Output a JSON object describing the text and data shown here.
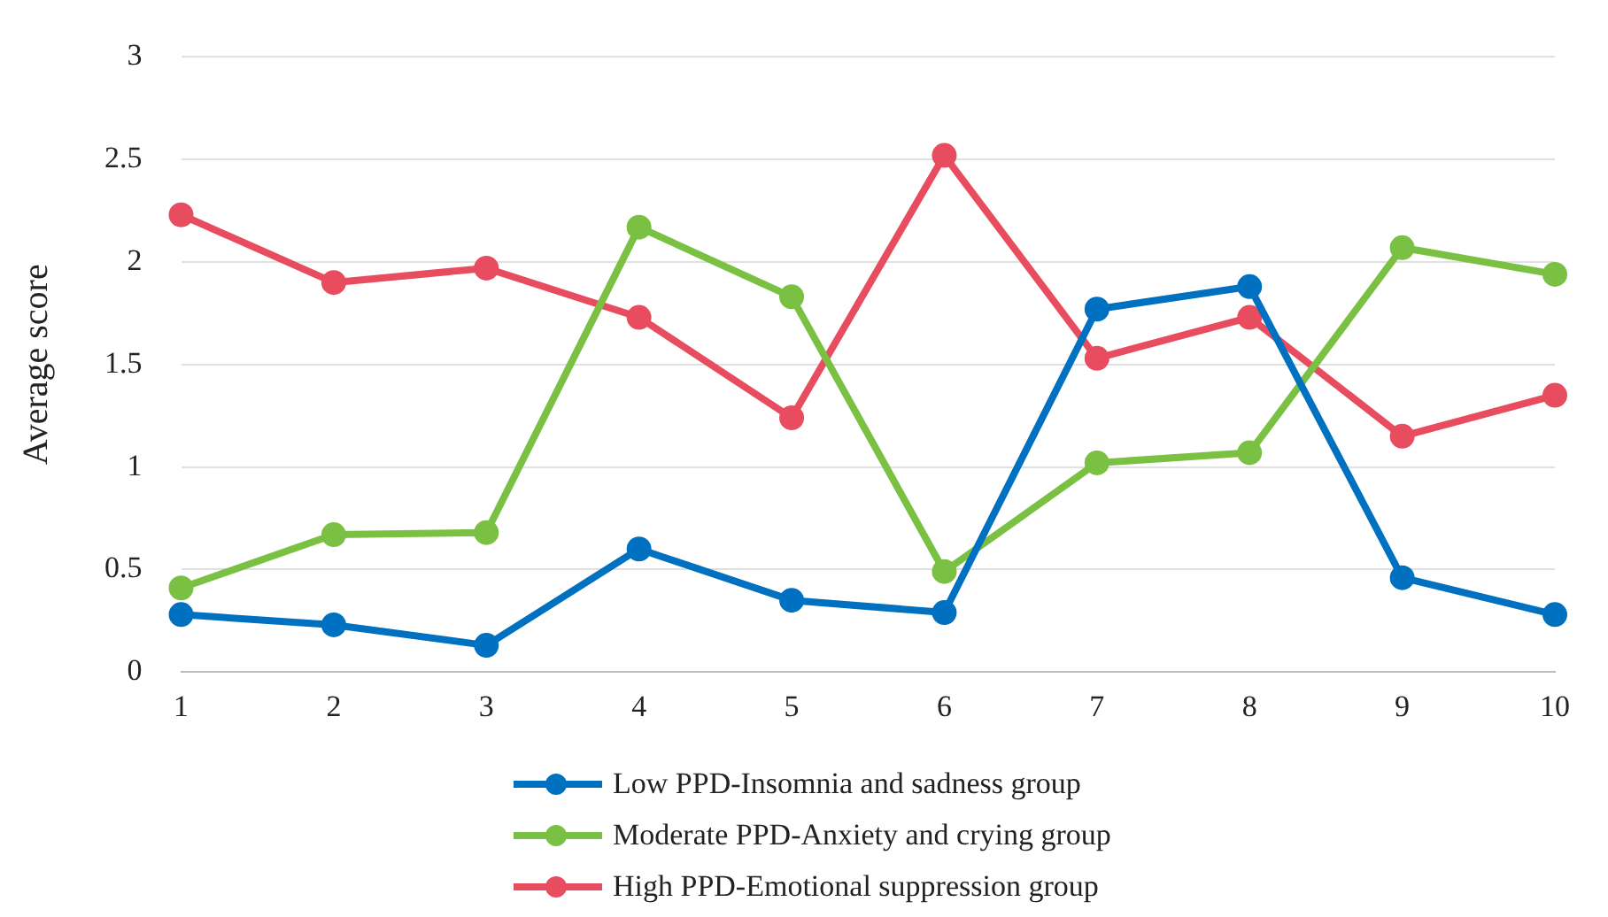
{
  "chart_data": {
    "type": "line",
    "ylabel": "Average score",
    "categories": [
      "1",
      "2",
      "3",
      "4",
      "5",
      "6",
      "7",
      "8",
      "9",
      "10"
    ],
    "series": [
      {
        "name": "Low PPD-Insomnia and sadness group",
        "color": "#0070c0",
        "values": [
          0.28,
          0.23,
          0.13,
          0.6,
          0.35,
          0.29,
          1.77,
          1.88,
          0.46,
          0.28
        ]
      },
      {
        "name": "Moderate PPD-Anxiety and crying group",
        "color": "#7ac143",
        "values": [
          0.41,
          0.67,
          0.68,
          2.17,
          1.83,
          0.49,
          1.02,
          1.07,
          2.07,
          1.94
        ]
      },
      {
        "name": "High PPD-Emotional suppression group",
        "color": "#e84c5f",
        "values": [
          2.23,
          1.9,
          1.97,
          1.73,
          1.24,
          2.52,
          1.53,
          1.73,
          1.15,
          1.35
        ]
      }
    ],
    "ylim": [
      0,
      3
    ],
    "yticks": [
      0,
      0.5,
      1,
      1.5,
      2,
      2.5,
      3
    ],
    "grid": "y",
    "legend": "bottom",
    "marker": "circle",
    "line_style": "solid"
  }
}
